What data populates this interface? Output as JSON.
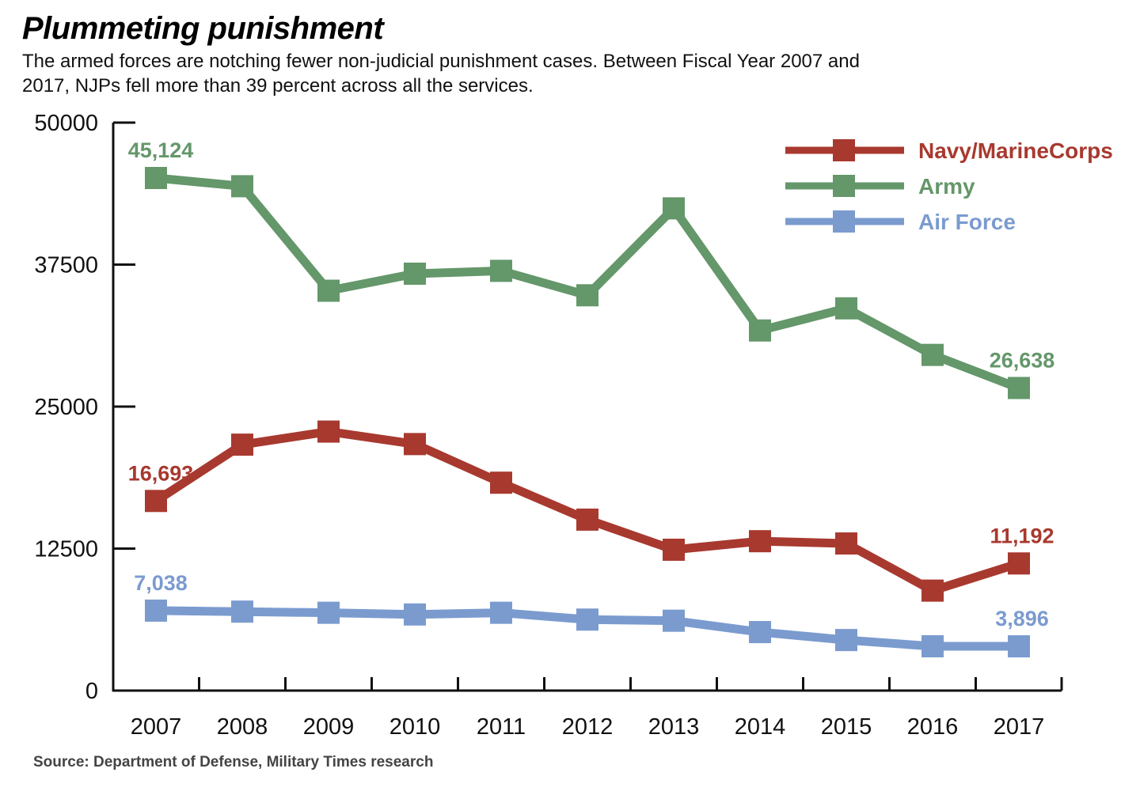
{
  "header": {
    "title": "Plummeting punishment",
    "subtitle": "The armed forces are notching fewer non-judicial punishment cases. Between Fiscal Year 2007 and 2017, NJPs fell more than 39 percent across all the services."
  },
  "footer": {
    "source": "Source:  Department of Defense, Military Times research"
  },
  "chart_data": {
    "type": "line",
    "title": "Plummeting punishment",
    "xlabel": "",
    "ylabel": "",
    "x": [
      "2007",
      "2008",
      "2009",
      "2010",
      "2011",
      "2012",
      "2013",
      "2014",
      "2015",
      "2016",
      "2017"
    ],
    "ylim": [
      0,
      50000
    ],
    "yticks": [
      0,
      12500,
      25000,
      37500,
      50000
    ],
    "ytick_labels": [
      "0",
      "12500",
      "25000",
      "37500",
      "50000"
    ],
    "grid": false,
    "legend_position": "top-right",
    "series": [
      {
        "name": "Navy/MarineCorps",
        "color": "#a8392f",
        "values": [
          16693,
          21650,
          22800,
          21700,
          18300,
          15050,
          12400,
          13150,
          12950,
          8800,
          11192
        ],
        "labels": [
          {
            "index": 0,
            "text": "16,693"
          },
          {
            "index": 10,
            "text": "11,192"
          }
        ]
      },
      {
        "name": "Army",
        "color": "#64976a",
        "values": [
          45124,
          44400,
          35200,
          36700,
          36950,
          34800,
          42450,
          31700,
          33650,
          29550,
          26638
        ],
        "labels": [
          {
            "index": 0,
            "text": "45,124"
          },
          {
            "index": 10,
            "text": "26,638"
          }
        ]
      },
      {
        "name": "Air Force",
        "color": "#7b9bcf",
        "values": [
          7038,
          6950,
          6850,
          6700,
          6850,
          6250,
          6150,
          5150,
          4450,
          3900,
          3896
        ],
        "labels": [
          {
            "index": 0,
            "text": "7,038"
          },
          {
            "index": 10,
            "text": "3,896"
          }
        ]
      }
    ]
  }
}
